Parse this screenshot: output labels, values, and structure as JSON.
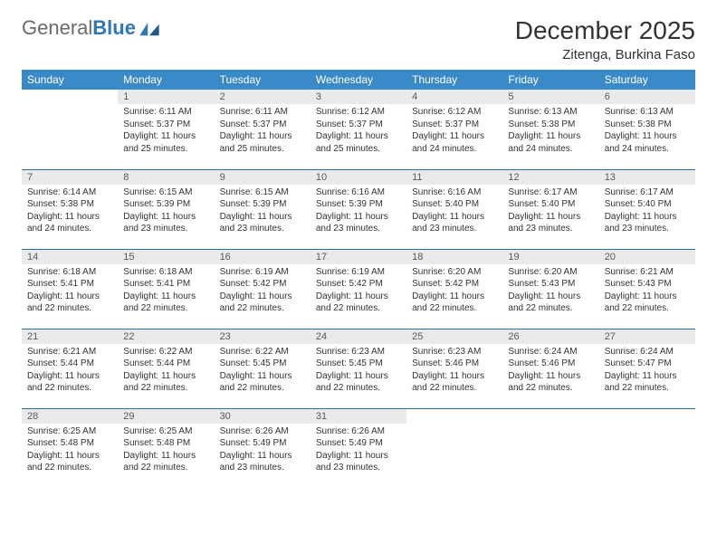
{
  "brand": {
    "name_gray": "General",
    "name_blue": "Blue"
  },
  "header": {
    "title": "December 2025",
    "location": "Zitenga, Burkina Faso"
  },
  "colors": {
    "header_bg": "#3a8ac8",
    "daynum_bg": "#e9eaeb",
    "row_border": "#2f6ea5",
    "logo_blue": "#2f78b7",
    "logo_gray": "#6b6b6b"
  },
  "weekdays": [
    "Sunday",
    "Monday",
    "Tuesday",
    "Wednesday",
    "Thursday",
    "Friday",
    "Saturday"
  ],
  "calendar": {
    "first_weekday_index": 1,
    "num_days": 31,
    "days": {
      "1": {
        "sunrise": "6:11 AM",
        "sunset": "5:37 PM",
        "daylight": "11 hours and 25 minutes."
      },
      "2": {
        "sunrise": "6:11 AM",
        "sunset": "5:37 PM",
        "daylight": "11 hours and 25 minutes."
      },
      "3": {
        "sunrise": "6:12 AM",
        "sunset": "5:37 PM",
        "daylight": "11 hours and 25 minutes."
      },
      "4": {
        "sunrise": "6:12 AM",
        "sunset": "5:37 PM",
        "daylight": "11 hours and 24 minutes."
      },
      "5": {
        "sunrise": "6:13 AM",
        "sunset": "5:38 PM",
        "daylight": "11 hours and 24 minutes."
      },
      "6": {
        "sunrise": "6:13 AM",
        "sunset": "5:38 PM",
        "daylight": "11 hours and 24 minutes."
      },
      "7": {
        "sunrise": "6:14 AM",
        "sunset": "5:38 PM",
        "daylight": "11 hours and 24 minutes."
      },
      "8": {
        "sunrise": "6:15 AM",
        "sunset": "5:39 PM",
        "daylight": "11 hours and 23 minutes."
      },
      "9": {
        "sunrise": "6:15 AM",
        "sunset": "5:39 PM",
        "daylight": "11 hours and 23 minutes."
      },
      "10": {
        "sunrise": "6:16 AM",
        "sunset": "5:39 PM",
        "daylight": "11 hours and 23 minutes."
      },
      "11": {
        "sunrise": "6:16 AM",
        "sunset": "5:40 PM",
        "daylight": "11 hours and 23 minutes."
      },
      "12": {
        "sunrise": "6:17 AM",
        "sunset": "5:40 PM",
        "daylight": "11 hours and 23 minutes."
      },
      "13": {
        "sunrise": "6:17 AM",
        "sunset": "5:40 PM",
        "daylight": "11 hours and 23 minutes."
      },
      "14": {
        "sunrise": "6:18 AM",
        "sunset": "5:41 PM",
        "daylight": "11 hours and 22 minutes."
      },
      "15": {
        "sunrise": "6:18 AM",
        "sunset": "5:41 PM",
        "daylight": "11 hours and 22 minutes."
      },
      "16": {
        "sunrise": "6:19 AM",
        "sunset": "5:42 PM",
        "daylight": "11 hours and 22 minutes."
      },
      "17": {
        "sunrise": "6:19 AM",
        "sunset": "5:42 PM",
        "daylight": "11 hours and 22 minutes."
      },
      "18": {
        "sunrise": "6:20 AM",
        "sunset": "5:42 PM",
        "daylight": "11 hours and 22 minutes."
      },
      "19": {
        "sunrise": "6:20 AM",
        "sunset": "5:43 PM",
        "daylight": "11 hours and 22 minutes."
      },
      "20": {
        "sunrise": "6:21 AM",
        "sunset": "5:43 PM",
        "daylight": "11 hours and 22 minutes."
      },
      "21": {
        "sunrise": "6:21 AM",
        "sunset": "5:44 PM",
        "daylight": "11 hours and 22 minutes."
      },
      "22": {
        "sunrise": "6:22 AM",
        "sunset": "5:44 PM",
        "daylight": "11 hours and 22 minutes."
      },
      "23": {
        "sunrise": "6:22 AM",
        "sunset": "5:45 PM",
        "daylight": "11 hours and 22 minutes."
      },
      "24": {
        "sunrise": "6:23 AM",
        "sunset": "5:45 PM",
        "daylight": "11 hours and 22 minutes."
      },
      "25": {
        "sunrise": "6:23 AM",
        "sunset": "5:46 PM",
        "daylight": "11 hours and 22 minutes."
      },
      "26": {
        "sunrise": "6:24 AM",
        "sunset": "5:46 PM",
        "daylight": "11 hours and 22 minutes."
      },
      "27": {
        "sunrise": "6:24 AM",
        "sunset": "5:47 PM",
        "daylight": "11 hours and 22 minutes."
      },
      "28": {
        "sunrise": "6:25 AM",
        "sunset": "5:48 PM",
        "daylight": "11 hours and 22 minutes."
      },
      "29": {
        "sunrise": "6:25 AM",
        "sunset": "5:48 PM",
        "daylight": "11 hours and 22 minutes."
      },
      "30": {
        "sunrise": "6:26 AM",
        "sunset": "5:49 PM",
        "daylight": "11 hours and 23 minutes."
      },
      "31": {
        "sunrise": "6:26 AM",
        "sunset": "5:49 PM",
        "daylight": "11 hours and 23 minutes."
      }
    }
  },
  "labels": {
    "sunrise": "Sunrise:",
    "sunset": "Sunset:",
    "daylight": "Daylight:"
  }
}
